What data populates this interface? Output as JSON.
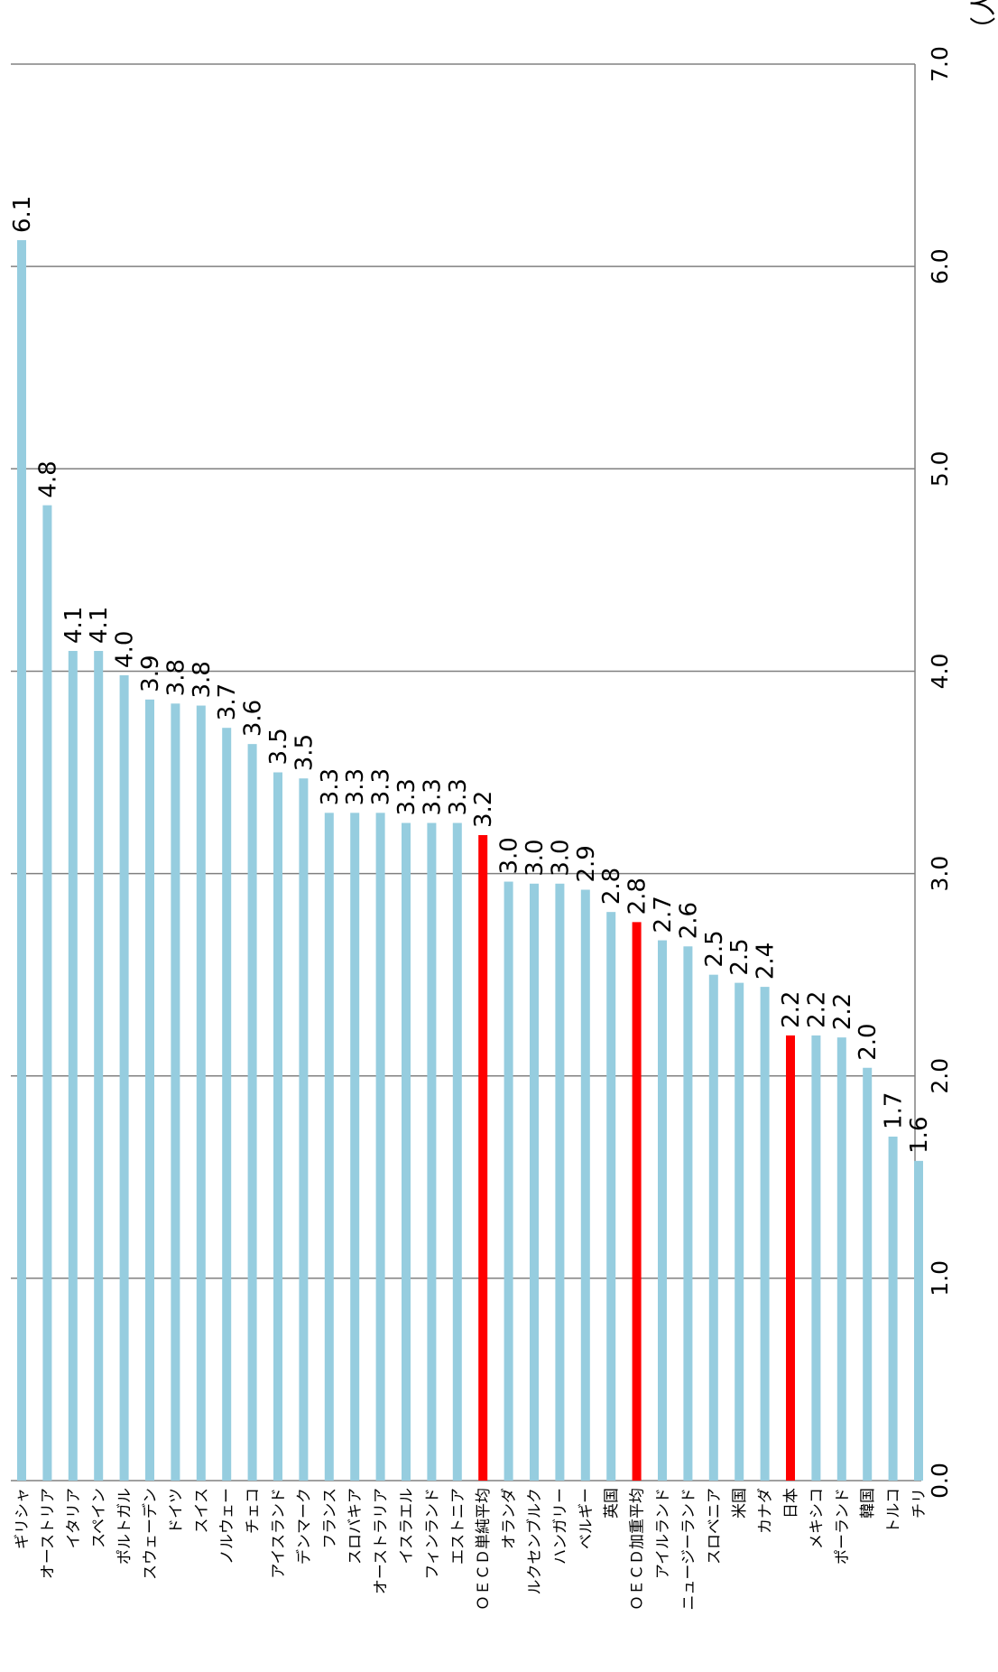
{
  "chart_data": {
    "type": "bar",
    "orientation": "vertical-rotated",
    "unit_label": "（人）",
    "ylim": [
      0,
      7
    ],
    "grid": true,
    "ticks": [
      "0.0",
      "1.0",
      "2.0",
      "3.0",
      "4.0",
      "5.0",
      "6.0",
      "7.0"
    ],
    "colors": {
      "default": "#96cddf",
      "highlight": "#ff0000",
      "grid": "#808080",
      "axis": "#808080"
    },
    "categories": [
      "ギリシャ",
      "オーストリア",
      "イタリア",
      "スペイン",
      "ポルトガル",
      "スウェーデン",
      "ドイツ",
      "スイス",
      "ノルウェー",
      "チェコ",
      "アイスランド",
      "デンマーク",
      "フランス",
      "スロバキア",
      "オーストラリア",
      "イスラエル",
      "フィンランド",
      "エストニア",
      "ＯＥＣＤ単純平均",
      "オランダ",
      "ルクセンブルク",
      "ハンガリー",
      "ベルギー",
      "英国",
      "ＯＥＣＤ加重平均",
      "アイルランド",
      "ニュージーランド",
      "スロベニア",
      "米国",
      "カナダ",
      "日本",
      "メキシコ",
      "ポーランド",
      "韓国",
      "トルコ",
      "チリ"
    ],
    "values": [
      6.13,
      4.82,
      4.1,
      4.1,
      3.98,
      3.86,
      3.84,
      3.83,
      3.72,
      3.64,
      3.5,
      3.47,
      3.3,
      3.3,
      3.3,
      3.25,
      3.25,
      3.25,
      3.19,
      2.96,
      2.95,
      2.95,
      2.92,
      2.81,
      2.76,
      2.67,
      2.64,
      2.5,
      2.46,
      2.44,
      2.2,
      2.2,
      2.19,
      2.04,
      1.7,
      1.58
    ],
    "labels": [
      "6.1",
      "4.8",
      "4.1",
      "4.1",
      "4.0",
      "3.9",
      "3.8",
      "3.8",
      "3.7",
      "3.6",
      "3.5",
      "3.5",
      "3.3",
      "3.3",
      "3.3",
      "3.3",
      "3.3",
      "3.3",
      "3.2",
      "3.0",
      "3.0",
      "3.0",
      "2.9",
      "2.8",
      "2.8",
      "2.7",
      "2.6",
      "2.5",
      "2.5",
      "2.4",
      "2.2",
      "2.2",
      "2.2",
      "2.0",
      "1.7",
      "1.6"
    ],
    "highlight": [
      "ＯＥＣＤ単純平均",
      "ＯＥＣＤ加重平均",
      "日本"
    ]
  }
}
